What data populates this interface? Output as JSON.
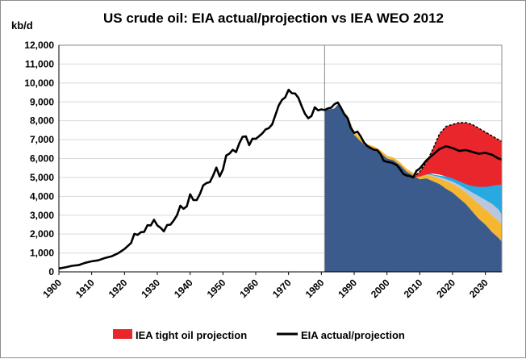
{
  "chart_data": {
    "type": "area",
    "title": "US crude oil: EIA actual/projection vs IEA WEO 2012",
    "ylabel": "kb/d",
    "xlabel": "",
    "ylim": [
      0,
      12000
    ],
    "xlim": [
      1900,
      2035
    ],
    "y_ticks": [
      "0",
      "1,000",
      "2,000",
      "3,000",
      "4,000",
      "5,000",
      "6,000",
      "7,000",
      "8,000",
      "9,000",
      "10,000",
      "11,000",
      "12,000"
    ],
    "x_ticks": [
      "1900",
      "1910",
      "1920",
      "1930",
      "1940",
      "1950",
      "1960",
      "1970",
      "1980",
      "1990",
      "2000",
      "2010",
      "2020",
      "2030"
    ],
    "grid": true,
    "legend_position": "bottom",
    "iea_start_year": 1981,
    "series": [
      {
        "name": "IEA tight oil projection",
        "kind": "area",
        "color": "#e8262b",
        "x": [
          2008,
          2010,
          2012,
          2014,
          2016,
          2018,
          2020,
          2022,
          2024,
          2026,
          2028,
          2030,
          2032,
          2034,
          2035
        ],
        "lower": [
          5000,
          5050,
          5150,
          5200,
          5150,
          5050,
          4950,
          4800,
          4650,
          4550,
          4500,
          4500,
          4550,
          4600,
          4600
        ],
        "upper": [
          5000,
          5300,
          5800,
          6500,
          7300,
          7700,
          7800,
          7900,
          7900,
          7800,
          7600,
          7400,
          7200,
          7000,
          6900
        ]
      },
      {
        "name": "EIA actual/projection",
        "kind": "line",
        "color": "#000000",
        "x": [
          1900,
          1902,
          1904,
          1906,
          1908,
          1910,
          1912,
          1914,
          1916,
          1918,
          1920,
          1922,
          1923,
          1924,
          1925,
          1926,
          1927,
          1928,
          1929,
          1930,
          1931,
          1932,
          1933,
          1934,
          1935,
          1936,
          1937,
          1938,
          1939,
          1940,
          1941,
          1942,
          1943,
          1944,
          1945,
          1946,
          1947,
          1948,
          1949,
          1950,
          1951,
          1952,
          1953,
          1954,
          1955,
          1956,
          1957,
          1958,
          1959,
          1960,
          1961,
          1962,
          1963,
          1964,
          1965,
          1966,
          1967,
          1968,
          1969,
          1970,
          1971,
          1972,
          1973,
          1974,
          1975,
          1976,
          1977,
          1978,
          1979,
          1980,
          1981,
          1982,
          1983,
          1984,
          1985,
          1986,
          1987,
          1988,
          1989,
          1990,
          1991,
          1992,
          1993,
          1994,
          1995,
          1996,
          1997,
          1998,
          1999,
          2000,
          2001,
          2002,
          2003,
          2004,
          2005,
          2006,
          2007,
          2008,
          2009,
          2010,
          2012,
          2014,
          2016,
          2018,
          2020,
          2022,
          2024,
          2026,
          2028,
          2030,
          2032,
          2034,
          2035
        ],
        "y": [
          180,
          240,
          320,
          360,
          480,
          560,
          610,
          730,
          820,
          980,
          1210,
          1530,
          2010,
          1960,
          2100,
          2120,
          2470,
          2460,
          2760,
          2460,
          2330,
          2150,
          2480,
          2500,
          2720,
          3000,
          3500,
          3340,
          3470,
          4110,
          3800,
          3800,
          4130,
          4580,
          4700,
          4750,
          5090,
          5520,
          5050,
          5410,
          6160,
          6260,
          6460,
          6340,
          6810,
          7150,
          7170,
          6710,
          7050,
          7040,
          7180,
          7330,
          7540,
          7610,
          7800,
          8300,
          8810,
          9100,
          9240,
          9640,
          9460,
          9440,
          9210,
          8770,
          8370,
          8130,
          8250,
          8710,
          8550,
          8600,
          8570,
          8650,
          8690,
          8880,
          8970,
          8680,
          8350,
          8140,
          7610,
          7360,
          7420,
          7170,
          6850,
          6660,
          6560,
          6470,
          6450,
          6250,
          5880,
          5820,
          5800,
          5740,
          5650,
          5430,
          5180,
          5100,
          5070,
          5000,
          5350,
          5470,
          5900,
          6200,
          6500,
          6650,
          6550,
          6400,
          6450,
          6350,
          6250,
          6300,
          6200,
          6000,
          5950
        ]
      }
    ],
    "iea_layers": {
      "x": [
        1981,
        1984,
        1985,
        1986,
        1988,
        1990,
        1992,
        1994,
        1996,
        1998,
        2000,
        2002,
        2004,
        2006,
        2008,
        2010,
        2012,
        2014,
        2016,
        2018,
        2020,
        2022,
        2024,
        2026,
        2028,
        2030,
        2032,
        2034,
        2035
      ],
      "base": [
        8550,
        8650,
        8850,
        8600,
        8200,
        7250,
        6900,
        6600,
        6500,
        6300,
        6000,
        5900,
        5650,
        5300,
        5100,
        4900,
        4950,
        4800,
        4650,
        4400,
        4200,
        3900,
        3600,
        3200,
        2800,
        2500,
        2100,
        1800,
        1600
      ],
      "yellow": [
        8550,
        8650,
        8900,
        8650,
        8250,
        7450,
        7050,
        6750,
        6650,
        6450,
        6150,
        6050,
        5800,
        5450,
        5250,
        5100,
        5150,
        5050,
        4950,
        4800,
        4650,
        4450,
        4200,
        3900,
        3600,
        3300,
        3000,
        2700,
        2500
      ],
      "grey": [
        8550,
        8650,
        8900,
        8650,
        8250,
        7450,
        7050,
        6750,
        6650,
        6450,
        6150,
        6050,
        5800,
        5450,
        5250,
        5100,
        5180,
        5100,
        5020,
        4900,
        4780,
        4600,
        4400,
        4200,
        4000,
        3800,
        3600,
        3300,
        3000
      ],
      "cyan": [
        8550,
        8650,
        8900,
        8650,
        8250,
        7450,
        7050,
        6750,
        6650,
        6450,
        6150,
        6050,
        5800,
        5450,
        5250,
        5100,
        5200,
        5150,
        5100,
        5050,
        5000,
        4950,
        4850,
        4700,
        4600,
        4550,
        4550,
        4600,
        4600
      ],
      "colors": {
        "base": "#3b5b8c",
        "yellow": "#f5b731",
        "grey": "#b9c6dd",
        "cyan": "#27a9e1",
        "outline": "#000000"
      }
    }
  }
}
